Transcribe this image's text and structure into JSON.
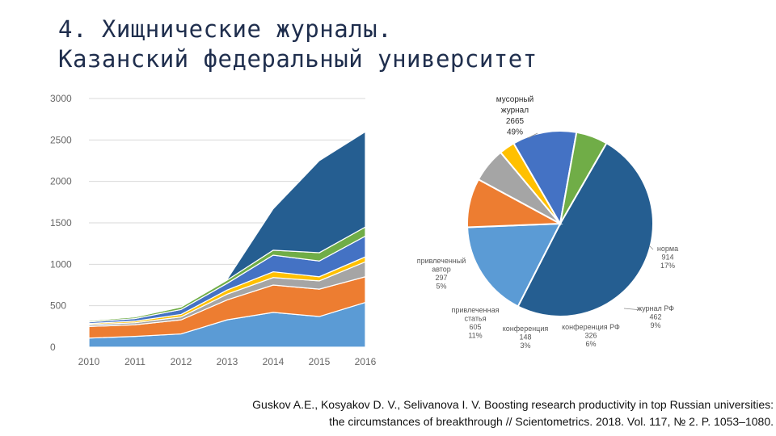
{
  "title": {
    "line1": "4. Хищнические журналы.",
    "line2": "Казанский федеральный университет"
  },
  "citation": {
    "line1": "Guskov A.E., Kosyakov D. V., Selivanova I. V. Boosting research productivity in top Russian universities:",
    "line2": "the circumstances of breakthrough // Scientometrics. 2018. Vol. 117, № 2. P. 1053–1080."
  },
  "chart_data": [
    {
      "type": "area",
      "stacked": true,
      "title": "",
      "xlabel": "",
      "ylabel": "",
      "x": [
        "2010",
        "2011",
        "2012",
        "2013",
        "2014",
        "2015",
        "2016"
      ],
      "ylim": [
        0,
        3000
      ],
      "yticks": [
        "0",
        "500",
        "1000",
        "1500",
        "2000",
        "2500",
        "3000"
      ],
      "grid": true,
      "series": [
        {
          "name": "норма",
          "color": "#5b9bd5",
          "values": [
            110,
            130,
            160,
            330,
            420,
            370,
            540
          ]
        },
        {
          "name": "журнал РФ",
          "color": "#ed7d31",
          "values": [
            140,
            140,
            170,
            240,
            330,
            330,
            310
          ]
        },
        {
          "name": "конференция РФ",
          "color": "#a5a5a5",
          "values": [
            20,
            25,
            35,
            70,
            90,
            100,
            180
          ]
        },
        {
          "name": "конференция",
          "color": "#ffc000",
          "values": [
            15,
            20,
            30,
            50,
            70,
            50,
            60
          ]
        },
        {
          "name": "привлеченная статья",
          "color": "#4472c4",
          "values": [
            20,
            30,
            60,
            80,
            200,
            190,
            250
          ]
        },
        {
          "name": "привлеченный автор",
          "color": "#70ad47",
          "values": [
            15,
            20,
            30,
            40,
            60,
            100,
            110
          ]
        },
        {
          "name": "мусорный журнал",
          "color": "#255e91",
          "values": [
            0,
            0,
            0,
            10,
            500,
            1110,
            1150
          ]
        }
      ]
    },
    {
      "type": "pie",
      "title": "",
      "slices": [
        {
          "label": "мусорный журнал",
          "value": 2665,
          "percent": "49%",
          "color": "#255e91"
        },
        {
          "label": "норма",
          "value": 914,
          "percent": "17%",
          "color": "#5b9bd5"
        },
        {
          "label": "журнал РФ",
          "value": 462,
          "percent": "9%",
          "color": "#ed7d31"
        },
        {
          "label": "конференция РФ",
          "value": 326,
          "percent": "6%",
          "color": "#a5a5a5"
        },
        {
          "label": "конференция",
          "value": 148,
          "percent": "3%",
          "color": "#ffc000"
        },
        {
          "label": "привлеченная статья",
          "value": 605,
          "percent": "11%",
          "color": "#4472c4"
        },
        {
          "label": "привлеченный автор",
          "value": 297,
          "percent": "5%",
          "color": "#70ad47"
        }
      ],
      "label_texts": {
        "trash": [
          "мусорный",
          "журнал",
          "2665",
          "49%"
        ],
        "norm": [
          "норма",
          "914",
          "17%"
        ],
        "rf_journal": [
          "журнал РФ",
          "462",
          "9%"
        ],
        "rf_conf": [
          "конференция РФ",
          "326",
          "6%"
        ],
        "conf": [
          "конференция",
          "148",
          "3%"
        ],
        "article": [
          "привлеченная",
          "статья",
          "605",
          "11%"
        ],
        "author": [
          "привлеченный",
          "автор",
          "297",
          "5%"
        ]
      }
    }
  ]
}
